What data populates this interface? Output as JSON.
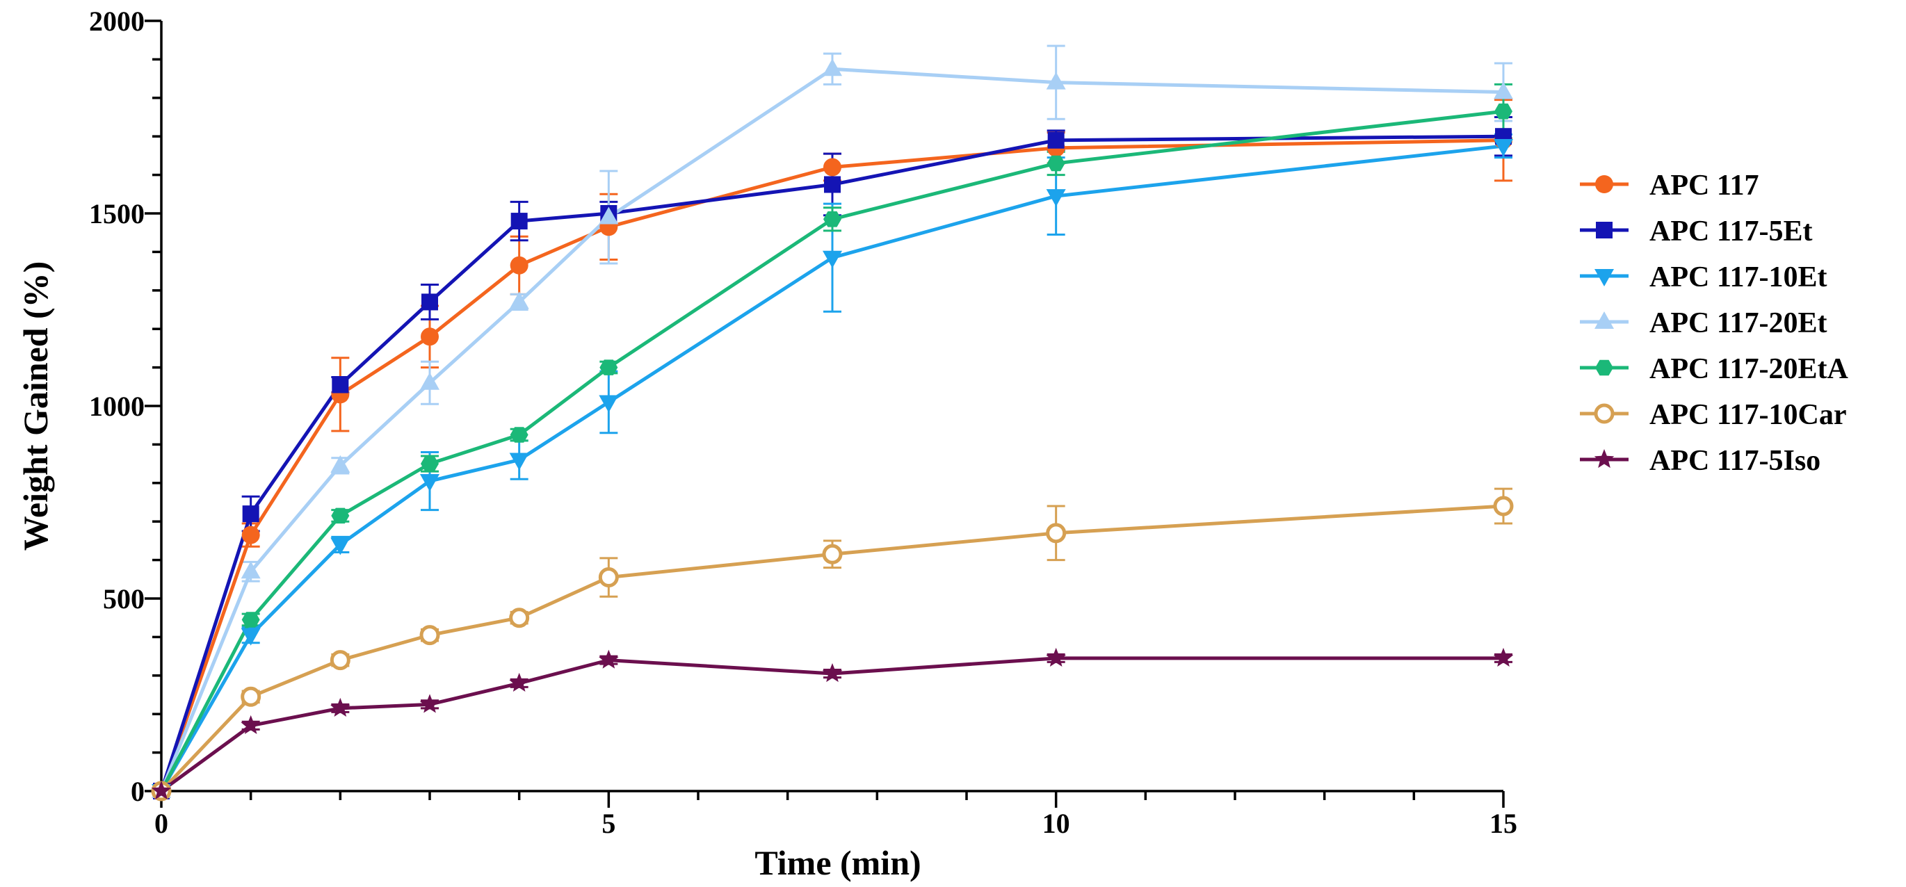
{
  "chart_data": {
    "type": "line",
    "title": "",
    "xlabel": "Time (min)",
    "ylabel": "Weight Gained (%)",
    "xlim": [
      0,
      15
    ],
    "ylim": [
      0,
      2000
    ],
    "x_ticks": [
      0,
      5,
      10,
      15
    ],
    "x_tick_labels": [
      "0",
      "5",
      "10",
      "15"
    ],
    "x_minor_step": 1,
    "y_ticks": [
      0,
      500,
      1000,
      1500,
      2000
    ],
    "y_tick_labels": [
      "0",
      "500",
      "1000",
      "1500",
      "2000"
    ],
    "y_minor_step": 100,
    "grid": false,
    "legend_position": "right",
    "x": [
      0,
      1,
      2,
      3,
      4,
      5,
      7.5,
      10,
      15
    ],
    "series": [
      {
        "name": "APC 117",
        "color": "#F4651E",
        "marker": "circle",
        "values": [
          0,
          665,
          1030,
          1180,
          1365,
          1465,
          1620,
          1670,
          1690
        ],
        "errors": [
          0,
          30,
          95,
          80,
          75,
          85,
          35,
          40,
          105
        ]
      },
      {
        "name": "APC 117-5Et",
        "color": "#1414B4",
        "marker": "square",
        "values": [
          0,
          720,
          1055,
          1270,
          1480,
          1500,
          1575,
          1690,
          1700
        ],
        "errors": [
          0,
          45,
          20,
          45,
          50,
          30,
          80,
          25,
          50
        ]
      },
      {
        "name": "APC 117-10Et",
        "color": "#1CA3EC",
        "marker": "triangle-down",
        "values": [
          0,
          405,
          640,
          805,
          860,
          1010,
          1385,
          1545,
          1675
        ],
        "errors": [
          0,
          20,
          20,
          75,
          50,
          80,
          140,
          100,
          30
        ]
      },
      {
        "name": "APC 117-20Et",
        "color": "#A8CFF5",
        "marker": "triangle-up",
        "values": [
          0,
          570,
          845,
          1060,
          1270,
          1490,
          1875,
          1840,
          1815
        ],
        "errors": [
          0,
          25,
          20,
          55,
          20,
          120,
          40,
          95,
          75
        ]
      },
      {
        "name": "APC 117-20EtA",
        "color": "#1BB878",
        "marker": "hexagon",
        "values": [
          0,
          445,
          715,
          850,
          925,
          1100,
          1485,
          1630,
          1765
        ],
        "errors": [
          0,
          15,
          15,
          20,
          15,
          15,
          30,
          30,
          70
        ]
      },
      {
        "name": "APC 117-10Car",
        "color": "#D6A052",
        "marker": "open-circle",
        "values": [
          0,
          245,
          340,
          405,
          450,
          555,
          615,
          670,
          740
        ],
        "errors": [
          0,
          15,
          15,
          15,
          15,
          50,
          35,
          70,
          45
        ]
      },
      {
        "name": "APC 117-5Iso",
        "color": "#6B0F4E",
        "marker": "star",
        "values": [
          0,
          170,
          215,
          225,
          280,
          340,
          305,
          345,
          345
        ],
        "errors": [
          0,
          10,
          10,
          10,
          10,
          10,
          10,
          10,
          10
        ]
      }
    ]
  }
}
